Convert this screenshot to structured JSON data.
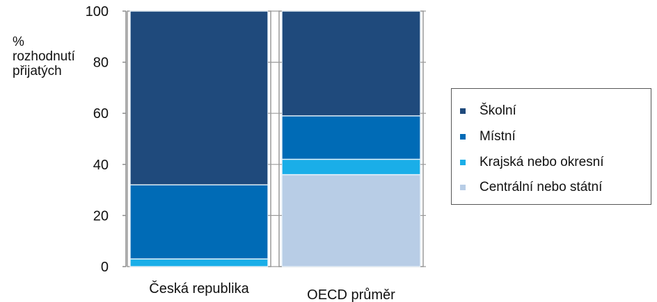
{
  "chart_data": {
    "type": "bar",
    "stacked": true,
    "ylabel": [
      "%",
      "rozhodnutí",
      "přijatých"
    ],
    "ylim": [
      0,
      100
    ],
    "yticks": [
      0,
      20,
      40,
      60,
      80,
      100
    ],
    "categories": [
      "Česká republika",
      "OECD průměr"
    ],
    "series": [
      {
        "name": "Centrální nebo státní",
        "color": "#b8cde6",
        "values": [
          0,
          36
        ]
      },
      {
        "name": "Krajská nebo okresní",
        "color": "#1aaee8",
        "values": [
          3,
          6
        ]
      },
      {
        "name": "Místní",
        "color": "#006bb6",
        "values": [
          29,
          17
        ]
      },
      {
        "name": "Školní",
        "color": "#1f4a7c",
        "values": [
          68,
          41
        ]
      }
    ],
    "legend": {
      "position": "right",
      "order": [
        "Školní",
        "Místní",
        "Krajská nebo okresní",
        "Centrální nebo státní"
      ]
    },
    "grid": false
  }
}
